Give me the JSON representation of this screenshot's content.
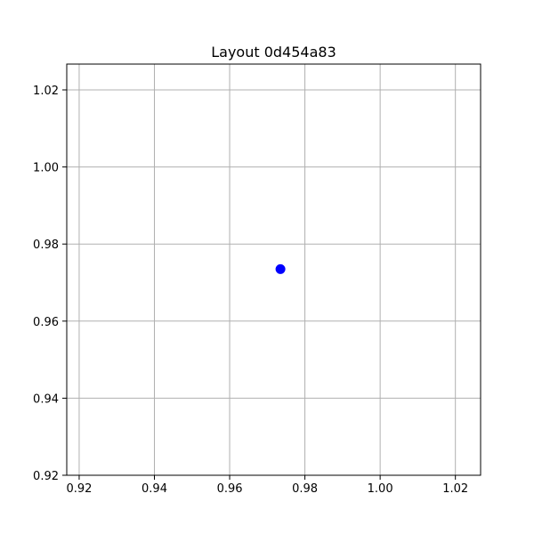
{
  "chart_data": {
    "type": "scatter",
    "title": "Layout 0d454a83",
    "xlabel": "",
    "ylabel": "",
    "xlim": [
      0.9167,
      1.0267
    ],
    "ylim": [
      0.92,
      1.0267
    ],
    "x_ticks": [
      0.92,
      0.94,
      0.96,
      0.98,
      1.0,
      1.02
    ],
    "x_tick_labels": [
      "0.92",
      "0.94",
      "0.96",
      "0.98",
      "1.00",
      "1.02"
    ],
    "y_ticks": [
      0.92,
      0.94,
      0.96,
      0.98,
      1.0,
      1.02
    ],
    "y_tick_labels": [
      "0.92",
      "0.94",
      "0.96",
      "0.98",
      "1.00",
      "1.02"
    ],
    "grid": true,
    "legend": "none",
    "series": [
      {
        "color": "#0000ff",
        "points": [
          {
            "x": 0.9735,
            "y": 0.9735
          }
        ]
      }
    ]
  }
}
